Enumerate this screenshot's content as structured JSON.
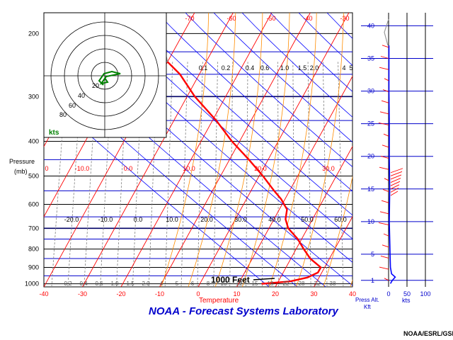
{
  "chart_data": {
    "type": "line",
    "title": "NOAA - Forecast Systems Laboratory",
    "credit": "NOAA/ESRL/GSD",
    "xlabel": "Temperature",
    "ylabel_line1": "Pressure",
    "ylabel_line2": "(mb)",
    "pressure_levels": [
      200,
      300,
      400,
      500,
      600,
      700,
      800,
      900,
      1000
    ],
    "pressure_range": [
      175,
      1020
    ],
    "temperature_ticks": [
      -40,
      -30,
      -20,
      -10,
      0,
      10,
      20,
      30,
      40
    ],
    "temperature_range": [
      -40,
      40
    ],
    "isotherm_labels_top": [
      "-70",
      "-60",
      "-50",
      "-40",
      "-30"
    ],
    "isotherm_labels_left": [
      "0",
      "-10.0",
      "0.0",
      "10.0",
      "20.0",
      "30.0"
    ],
    "isotherm_labels_mid": [
      "-20.0",
      "-10.0",
      "0.0",
      "10.0",
      "20.0",
      "30.0",
      "40.0",
      "50.0",
      "60.0"
    ],
    "mixing_ratio_labels_top": [
      "0.1",
      "0.2",
      "0.4",
      "0.6",
      "1.0",
      "1.5",
      "2.0",
      "4",
      "5"
    ],
    "mixing_ratio_labels_bottom": [
      "0.2",
      "0.4",
      "0.6",
      "1.0",
      "1.5",
      "2.0",
      "4",
      "5",
      "6",
      "8",
      "10",
      "12",
      "15",
      "18",
      "22",
      "28",
      "32",
      "38"
    ],
    "annotation": "1000 Feet",
    "temperature_profile": [
      {
        "p": 1000,
        "t": 16
      },
      {
        "p": 985,
        "t": 23
      },
      {
        "p": 960,
        "t": 27
      },
      {
        "p": 930,
        "t": 29
      },
      {
        "p": 900,
        "t": 29
      },
      {
        "p": 850,
        "t": 25
      },
      {
        "p": 800,
        "t": 22
      },
      {
        "p": 750,
        "t": 19
      },
      {
        "p": 700,
        "t": 15
      },
      {
        "p": 660,
        "t": 13
      },
      {
        "p": 620,
        "t": 12
      },
      {
        "p": 580,
        "t": 9
      },
      {
        "p": 550,
        "t": 6
      },
      {
        "p": 500,
        "t": 1
      },
      {
        "p": 450,
        "t": -5
      },
      {
        "p": 400,
        "t": -12
      },
      {
        "p": 350,
        "t": -19
      },
      {
        "p": 300,
        "t": -28
      },
      {
        "p": 260,
        "t": -35
      },
      {
        "p": 240,
        "t": -40
      }
    ],
    "hodograph": {
      "rings_kts": [
        20,
        40,
        60,
        80
      ],
      "ring_labels": [
        "20",
        "40",
        "60",
        "80"
      ],
      "units": "kts"
    },
    "wind_panel": {
      "height_ticks_kft": [
        1,
        5,
        10,
        15,
        20,
        25,
        30,
        35,
        40
      ],
      "height_range_kft": [
        0,
        42
      ],
      "speed_ticks_kts": [
        0,
        50,
        100
      ],
      "height_label_line1": "Press Alt.",
      "height_label_line2": "Kft",
      "speed_label": "kts",
      "speed_profile": [
        {
          "h": 0.5,
          "s": 5
        },
        {
          "h": 1,
          "s": 10
        },
        {
          "h": 1.5,
          "s": 18
        },
        {
          "h": 2,
          "s": 8
        },
        {
          "h": 3,
          "s": 5
        },
        {
          "h": 5,
          "s": 4
        },
        {
          "h": 10,
          "s": 2
        },
        {
          "h": 15,
          "s": 3
        },
        {
          "h": 20,
          "s": 2
        },
        {
          "h": 25,
          "s": 2
        },
        {
          "h": 30,
          "s": 1
        },
        {
          "h": 35,
          "s": 1
        },
        {
          "h": 37,
          "s": 1
        }
      ]
    }
  },
  "colors": {
    "temperature_line": "#ff0000",
    "isotherm": "#ff0000",
    "isobar": "#0000cc",
    "grid_black": "#000000",
    "dry_adiabat": "#0000ff",
    "moist_adiabat": "#ff8c00",
    "mixing_ratio": "#808080",
    "hodograph_trace": "#008000",
    "title": "#0000cc"
  }
}
